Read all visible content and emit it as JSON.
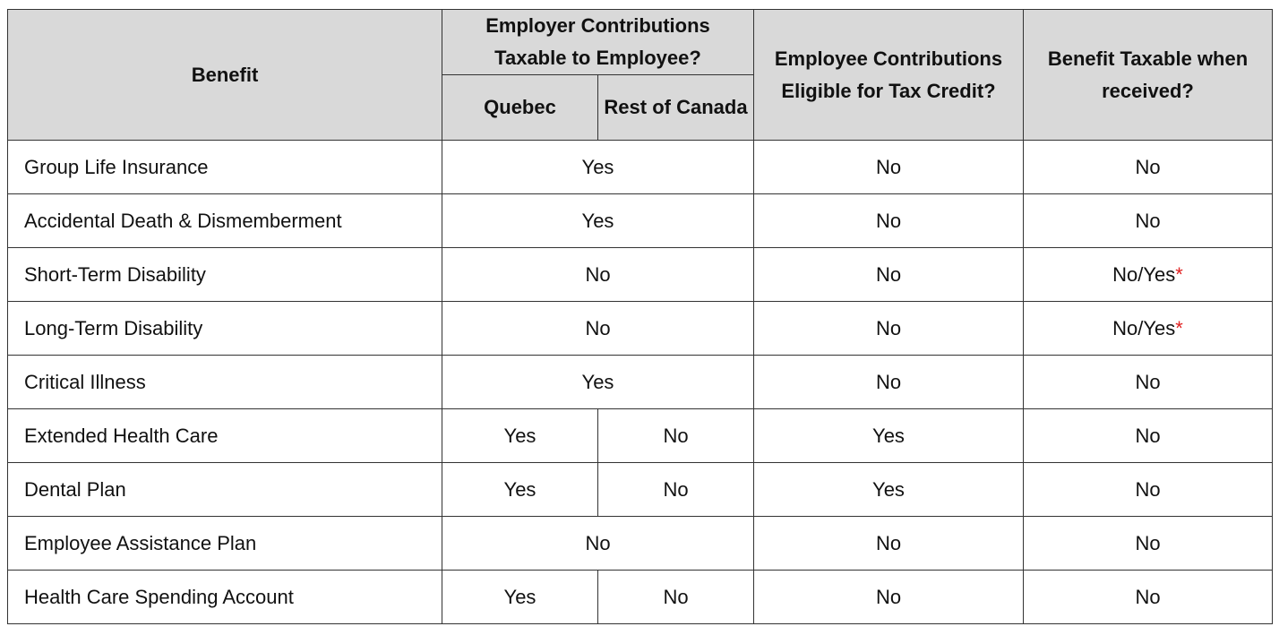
{
  "table": {
    "header": {
      "benefit": "Benefit",
      "employer_contributions": "Employer Contributions Taxable to Employee?",
      "quebec": "Quebec",
      "rest_of_canada": "Rest of Canada",
      "employee_contributions": "Employee Contributions Eligible for Tax Credit?",
      "benefit_taxable": "Benefit Taxable when received?"
    },
    "rows": [
      [
        "Group Life Insurance",
        "Yes",
        "No",
        "No"
      ],
      [
        "Accidental Death & Dismemberment",
        "Yes",
        "No",
        "No"
      ],
      [
        "Short-Term Disability",
        "No",
        "No",
        {
          "text": "No/Yes",
          "note": "*"
        }
      ],
      [
        "Long-Term Disability",
        "No",
        "No",
        {
          "text": "No/Yes",
          "note": "*"
        }
      ],
      [
        "Critical Illness",
        "Yes",
        "No",
        "No"
      ],
      [
        "Extended Health Care",
        "Yes",
        "No",
        "Yes",
        "No"
      ],
      [
        "Dental Plan",
        "Yes",
        "No",
        "Yes",
        "No"
      ],
      [
        "Employee Assistance Plan",
        "No",
        "No",
        "No"
      ],
      [
        "Health Care Spending Account",
        "Yes",
        "No",
        "No",
        "No"
      ]
    ]
  }
}
